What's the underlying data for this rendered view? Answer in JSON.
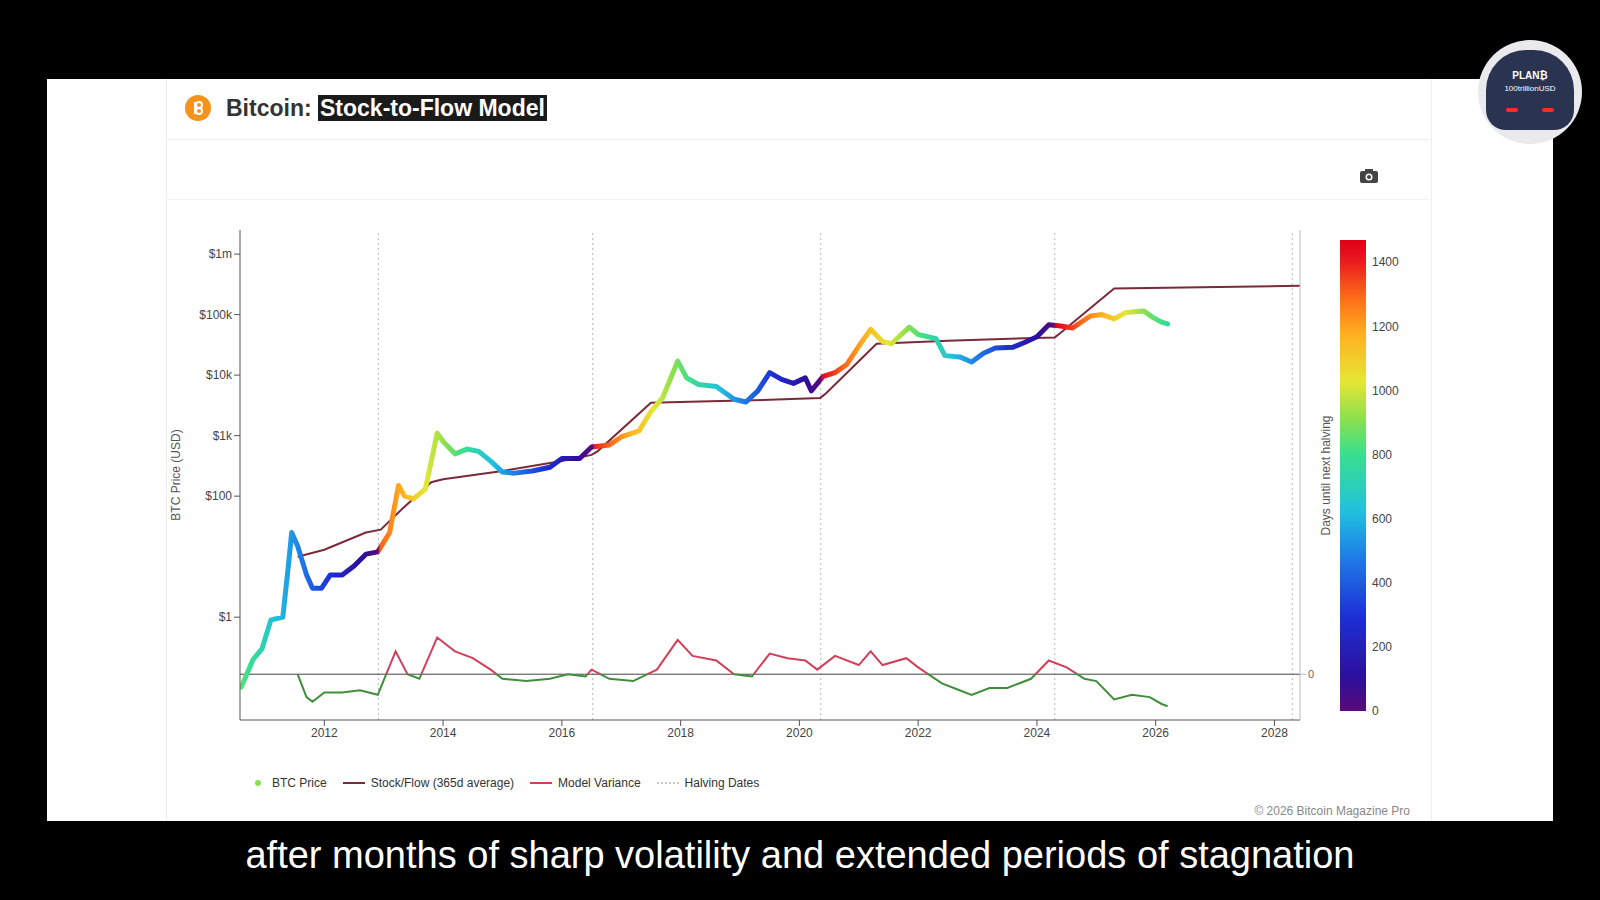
{
  "chart_data": {
    "type": "line",
    "title": "Bitcoin: Stock-to-Flow Model",
    "y_label": "BTC Price (USD)",
    "log": "y",
    "legend": "bottom",
    "xlim": [
      2010.58,
      2028.43
    ],
    "xticks": [
      2012,
      2014,
      2016,
      2018,
      2020,
      2022,
      2024,
      2026,
      2028
    ],
    "ylim": [
      0.02,
      2500000
    ],
    "yticks": [
      {
        "value": 1,
        "label": "$1"
      },
      {
        "value": 100,
        "label": "$100"
      },
      {
        "value": 1000,
        "label": "$1k"
      },
      {
        "value": 10000,
        "label": "$10k"
      },
      {
        "value": 100000,
        "label": "$100k"
      },
      {
        "value": 1000000,
        "label": "$1m"
      }
    ],
    "y2lim": [
      -1,
      9.7
    ],
    "y2ticks": [
      0
    ],
    "series": [
      {
        "name": "BTC Price",
        "color": "#8be04e",
        "x": [
          2010.6,
          2010.8,
          2010.95,
          2011.1,
          2011.3,
          2011.4,
          2011.45,
          2011.55,
          2011.7,
          2011.8,
          2011.95,
          2012.1,
          2012.3,
          2012.5,
          2012.7,
          2012.9,
          2013.1,
          2013.25,
          2013.35,
          2013.5,
          2013.7,
          2013.9,
          2014.0,
          2014.2,
          2014.4,
          2014.6,
          2014.8,
          2015.0,
          2015.2,
          2015.5,
          2015.8,
          2016.0,
          2016.3,
          2016.5,
          2016.8,
          2017.0,
          2017.3,
          2017.5,
          2017.7,
          2017.95,
          2018.1,
          2018.3,
          2018.6,
          2018.9,
          2019.1,
          2019.3,
          2019.5,
          2019.7,
          2019.9,
          2020.1,
          2020.2,
          2020.4,
          2020.6,
          2020.8,
          2021.0,
          2021.2,
          2021.4,
          2021.55,
          2021.85,
          2022.0,
          2022.3,
          2022.45,
          2022.7,
          2022.9,
          2023.1,
          2023.3,
          2023.6,
          2023.8,
          2024.0,
          2024.2,
          2024.4,
          2024.6,
          2024.9,
          2025.1,
          2025.3,
          2025.5,
          2025.8,
          2025.95,
          2026.1,
          2026.2
        ],
        "values": [
          0.07,
          0.2,
          0.3,
          0.9,
          1,
          8,
          25,
          15,
          5,
          3,
          3,
          5,
          5,
          7,
          11,
          12,
          25,
          150,
          100,
          90,
          130,
          1100,
          800,
          500,
          600,
          550,
          380,
          250,
          240,
          260,
          300,
          420,
          420,
          650,
          700,
          950,
          1200,
          2500,
          4300,
          17000,
          9000,
          7000,
          6500,
          4000,
          3600,
          5500,
          11000,
          8500,
          7300,
          9000,
          5500,
          9500,
          11000,
          15000,
          30000,
          57000,
          36000,
          33000,
          62000,
          47000,
          40000,
          21000,
          20000,
          16500,
          23000,
          28000,
          29000,
          35000,
          43000,
          68000,
          65000,
          60000,
          95000,
          100000,
          85000,
          108000,
          115000,
          90000,
          75000,
          70000
        ]
      },
      {
        "name": "Stock/Flow (365d average)",
        "color": "#7a2a38",
        "x": [
          2011.55,
          2012.0,
          2012.7,
          2012.95,
          2013.3,
          2013.8,
          2014.0,
          2015.0,
          2016.0,
          2016.5,
          2016.6,
          2017.5,
          2018.5,
          2019.5,
          2020.35,
          2020.45,
          2021.3,
          2022.5,
          2024.3,
          2024.4,
          2025.3,
          2028.43
        ],
        "values": [
          10,
          13,
          25,
          28,
          60,
          170,
          190,
          260,
          380,
          480,
          550,
          3500,
          3700,
          3900,
          4200,
          5000,
          33000,
          37000,
          42000,
          50000,
          270000,
          300000
        ]
      },
      {
        "name": "Model Variance",
        "colors": [
          "#d0405a",
          "#3f8f3a"
        ],
        "axis": "y2",
        "x": [
          2011.55,
          2011.7,
          2011.8,
          2012.0,
          2012.3,
          2012.6,
          2012.9,
          2013.2,
          2013.4,
          2013.6,
          2013.9,
          2014.2,
          2014.5,
          2014.8,
          2015.0,
          2015.4,
          2015.8,
          2016.1,
          2016.4,
          2016.5,
          2016.8,
          2017.2,
          2017.6,
          2017.95,
          2018.2,
          2018.6,
          2018.9,
          2019.2,
          2019.5,
          2019.8,
          2020.1,
          2020.3,
          2020.6,
          2021.0,
          2021.2,
          2021.4,
          2021.8,
          2022.0,
          2022.4,
          2022.6,
          2022.9,
          2023.2,
          2023.5,
          2023.9,
          2024.2,
          2024.5,
          2024.8,
          2025.0,
          2025.3,
          2025.6,
          2025.9,
          2026.1,
          2026.2
        ],
        "values": [
          0,
          -0.5,
          -0.6,
          -0.4,
          -0.4,
          -0.35,
          -0.45,
          0.5,
          0,
          -0.1,
          0.8,
          0.5,
          0.35,
          0.1,
          -0.1,
          -0.15,
          -0.1,
          0,
          -0.05,
          0.1,
          -0.1,
          -0.15,
          0.1,
          0.75,
          0.4,
          0.3,
          0,
          -0.05,
          0.45,
          0.35,
          0.3,
          0.1,
          0.4,
          0.2,
          0.5,
          0.2,
          0.35,
          0.15,
          -0.2,
          -0.3,
          -0.45,
          -0.3,
          -0.3,
          -0.1,
          0.3,
          0.15,
          -0.1,
          -0.15,
          -0.55,
          -0.45,
          -0.5,
          -0.65,
          -0.7
        ]
      }
    ],
    "halving_dates": {
      "name": "Halving Dates",
      "color": "#b8b8b8",
      "line_style": "dotted",
      "x": [
        2012.91,
        2016.52,
        2020.36,
        2024.3,
        2028.3
      ]
    },
    "colorbar": {
      "label": "Days until next halving",
      "range": [
        0,
        1470
      ],
      "ticks": [
        0,
        200,
        400,
        600,
        800,
        1000,
        1200,
        1400
      ]
    },
    "copyright": "© 2026 Bitcoin Magazine Pro"
  },
  "caption": "after months of sharp volatility and extended periods of stagnation",
  "channel": {
    "name": "PLAN₿",
    "handle": "100trillionUSD"
  }
}
